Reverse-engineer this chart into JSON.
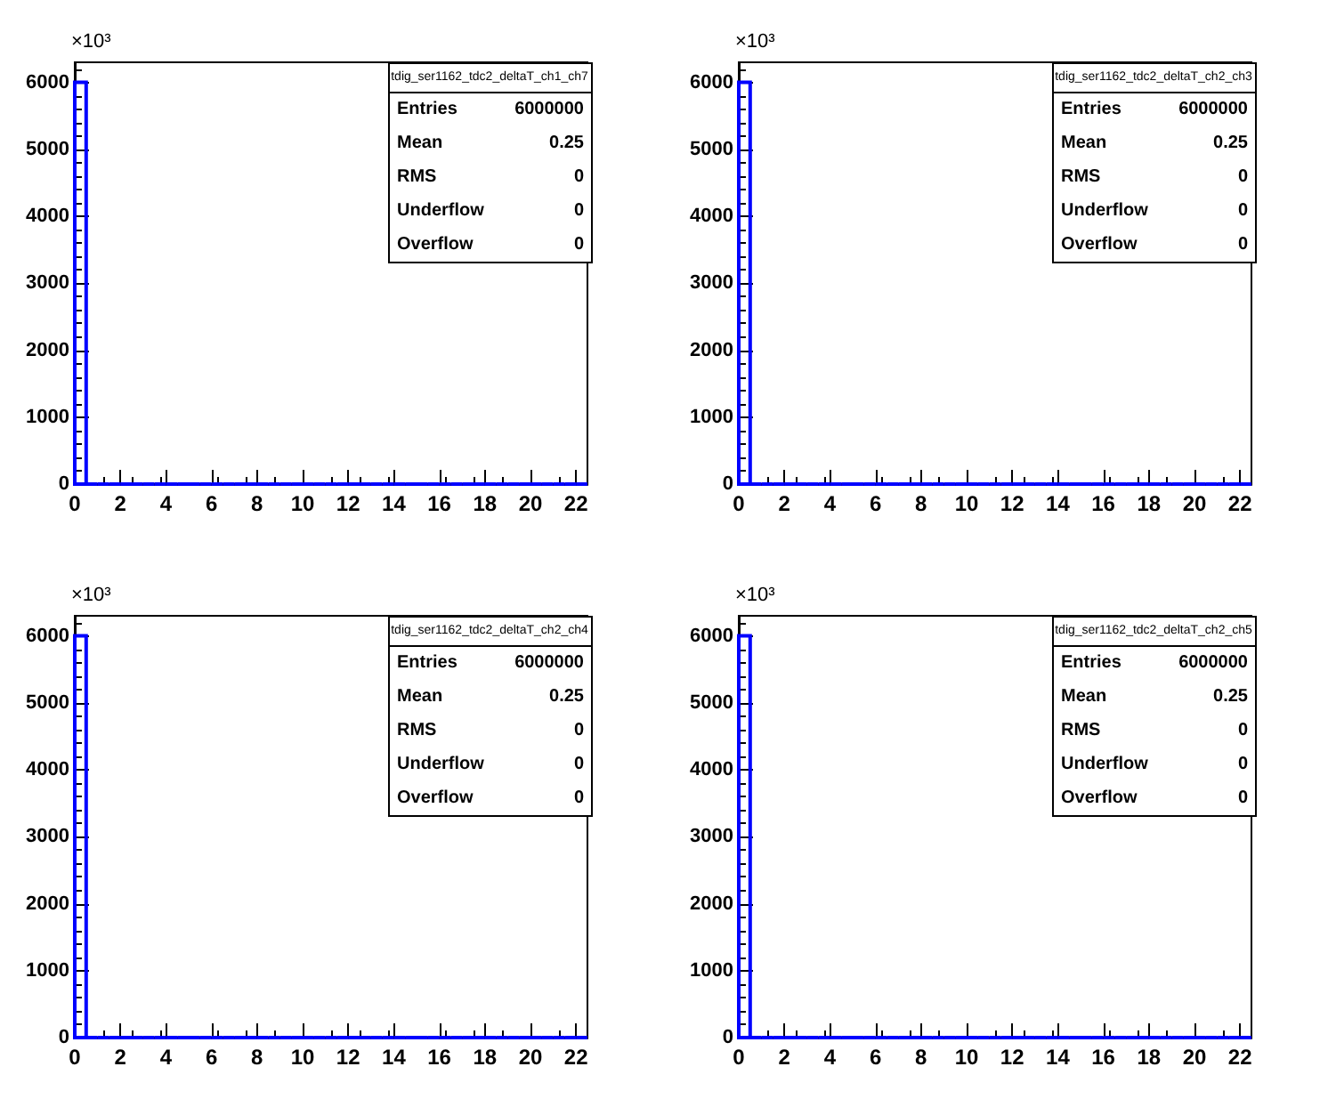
{
  "chart_data": [
    {
      "type": "histogram",
      "title": "tdig_ser1162_tdc2_deltaT_ch1_ch7",
      "ylabel": "×10³",
      "annotations": [
        "Entries 6000000",
        "Mean 0.25",
        "RMS 0",
        "Underflow 0",
        "Overflow 0"
      ],
      "bins": [
        0,
        0.5,
        1,
        1.5,
        2,
        2.5,
        3,
        3.5,
        4,
        4.5,
        5,
        5.5,
        6,
        6.5,
        7,
        7.5,
        8,
        8.5,
        9,
        9.5,
        10,
        10.5,
        11,
        11.5,
        12,
        12.5,
        13,
        13.5,
        14,
        14.5,
        15,
        15.5,
        16,
        16.5,
        17,
        17.5,
        18,
        18.5,
        19,
        19.5,
        20,
        20.5,
        21,
        21.5,
        22,
        22.5
      ],
      "values": [
        6000,
        0,
        0,
        0,
        0,
        0,
        0,
        0,
        0,
        0,
        0,
        0,
        0,
        0,
        0,
        0,
        0,
        0,
        0,
        0,
        0,
        0,
        0,
        0,
        0,
        0,
        0,
        0,
        0,
        0,
        0,
        0,
        0,
        0,
        0,
        0,
        0,
        0,
        0,
        0,
        0,
        0,
        0,
        0,
        0
      ],
      "color": "#0000ff",
      "xlim": [
        0,
        22.5
      ],
      "ylim": [
        0,
        6300
      ],
      "xticks": [
        0,
        2,
        4,
        6,
        8,
        10,
        12,
        14,
        16,
        18,
        20,
        22
      ],
      "yticks": [
        0,
        1000,
        2000,
        3000,
        4000,
        5000,
        6000
      ],
      "grid": false,
      "legend": false
    },
    {
      "type": "histogram",
      "title": "tdig_ser1162_tdc2_deltaT_ch2_ch3",
      "ylabel": "×10³",
      "annotations": [
        "Entries 6000000",
        "Mean 0.25",
        "RMS 0",
        "Underflow 0",
        "Overflow 0"
      ],
      "bins": [
        0,
        0.5,
        1,
        1.5,
        2,
        2.5,
        3,
        3.5,
        4,
        4.5,
        5,
        5.5,
        6,
        6.5,
        7,
        7.5,
        8,
        8.5,
        9,
        9.5,
        10,
        10.5,
        11,
        11.5,
        12,
        12.5,
        13,
        13.5,
        14,
        14.5,
        15,
        15.5,
        16,
        16.5,
        17,
        17.5,
        18,
        18.5,
        19,
        19.5,
        20,
        20.5,
        21,
        21.5,
        22,
        22.5
      ],
      "values": [
        6000,
        0,
        0,
        0,
        0,
        0,
        0,
        0,
        0,
        0,
        0,
        0,
        0,
        0,
        0,
        0,
        0,
        0,
        0,
        0,
        0,
        0,
        0,
        0,
        0,
        0,
        0,
        0,
        0,
        0,
        0,
        0,
        0,
        0,
        0,
        0,
        0,
        0,
        0,
        0,
        0,
        0,
        0,
        0,
        0
      ],
      "color": "#0000ff",
      "xlim": [
        0,
        22.5
      ],
      "ylim": [
        0,
        6300
      ],
      "xticks": [
        0,
        2,
        4,
        6,
        8,
        10,
        12,
        14,
        16,
        18,
        20,
        22
      ],
      "yticks": [
        0,
        1000,
        2000,
        3000,
        4000,
        5000,
        6000
      ],
      "grid": false,
      "legend": false
    },
    {
      "type": "histogram",
      "title": "tdig_ser1162_tdc2_deltaT_ch2_ch4",
      "ylabel": "×10³",
      "annotations": [
        "Entries 6000000",
        "Mean 0.25",
        "RMS 0",
        "Underflow 0",
        "Overflow 0"
      ],
      "bins": [
        0,
        0.5,
        1,
        1.5,
        2,
        2.5,
        3,
        3.5,
        4,
        4.5,
        5,
        5.5,
        6,
        6.5,
        7,
        7.5,
        8,
        8.5,
        9,
        9.5,
        10,
        10.5,
        11,
        11.5,
        12,
        12.5,
        13,
        13.5,
        14,
        14.5,
        15,
        15.5,
        16,
        16.5,
        17,
        17.5,
        18,
        18.5,
        19,
        19.5,
        20,
        20.5,
        21,
        21.5,
        22,
        22.5
      ],
      "values": [
        6000,
        0,
        0,
        0,
        0,
        0,
        0,
        0,
        0,
        0,
        0,
        0,
        0,
        0,
        0,
        0,
        0,
        0,
        0,
        0,
        0,
        0,
        0,
        0,
        0,
        0,
        0,
        0,
        0,
        0,
        0,
        0,
        0,
        0,
        0,
        0,
        0,
        0,
        0,
        0,
        0,
        0,
        0,
        0,
        0
      ],
      "color": "#0000ff",
      "xlim": [
        0,
        22.5
      ],
      "ylim": [
        0,
        6300
      ],
      "xticks": [
        0,
        2,
        4,
        6,
        8,
        10,
        12,
        14,
        16,
        18,
        20,
        22
      ],
      "yticks": [
        0,
        1000,
        2000,
        3000,
        4000,
        5000,
        6000
      ],
      "grid": false,
      "legend": false
    },
    {
      "type": "histogram",
      "title": "tdig_ser1162_tdc2_deltaT_ch2_ch5",
      "ylabel": "×10³",
      "annotations": [
        "Entries 6000000",
        "Mean 0.25",
        "RMS 0",
        "Underflow 0",
        "Overflow 0"
      ],
      "bins": [
        0,
        0.5,
        1,
        1.5,
        2,
        2.5,
        3,
        3.5,
        4,
        4.5,
        5,
        5.5,
        6,
        6.5,
        7,
        7.5,
        8,
        8.5,
        9,
        9.5,
        10,
        10.5,
        11,
        11.5,
        12,
        12.5,
        13,
        13.5,
        14,
        14.5,
        15,
        15.5,
        16,
        16.5,
        17,
        17.5,
        18,
        18.5,
        19,
        19.5,
        20,
        20.5,
        21,
        21.5,
        22,
        22.5
      ],
      "values": [
        6000,
        0,
        0,
        0,
        0,
        0,
        0,
        0,
        0,
        0,
        0,
        0,
        0,
        0,
        0,
        0,
        0,
        0,
        0,
        0,
        0,
        0,
        0,
        0,
        0,
        0,
        0,
        0,
        0,
        0,
        0,
        0,
        0,
        0,
        0,
        0,
        0,
        0,
        0,
        0,
        0,
        0,
        0,
        0,
        0
      ],
      "color": "#0000ff",
      "xlim": [
        0,
        22.5
      ],
      "ylim": [
        0,
        6300
      ],
      "xticks": [
        0,
        2,
        4,
        6,
        8,
        10,
        12,
        14,
        16,
        18,
        20,
        22
      ],
      "yticks": [
        0,
        1000,
        2000,
        3000,
        4000,
        5000,
        6000
      ],
      "grid": false,
      "legend": false
    }
  ]
}
